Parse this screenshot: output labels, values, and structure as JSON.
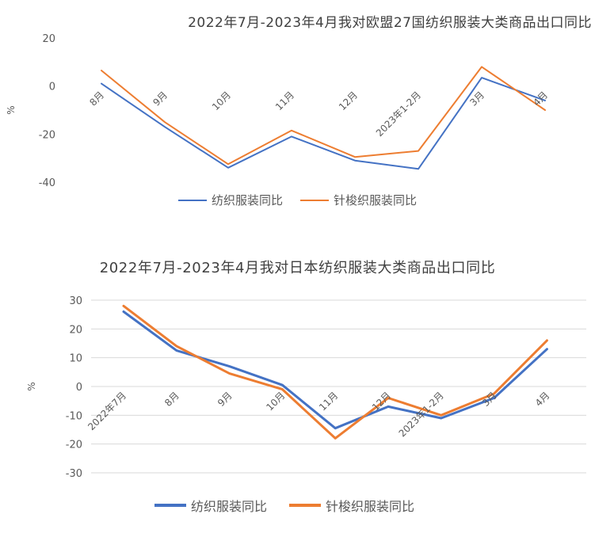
{
  "chart_data": [
    {
      "type": "line",
      "title": "2022年7月-2023年4月我对欧盟27国纺织服装大类商品出口同比",
      "ylabel": "%",
      "ylim": [
        -40,
        20
      ],
      "yticks": [
        20,
        0,
        -20,
        -40
      ],
      "categories": [
        "8月",
        "9月",
        "10月",
        "11月",
        "12月",
        "2023年1-2月",
        "3月",
        "4月"
      ],
      "series": [
        {
          "name": "纺织服装同比",
          "color": "#4472C4",
          "values": [
            1,
            -17,
            -34,
            -21,
            -31,
            -34.5,
            3.5,
            -6
          ]
        },
        {
          "name": "针梭织服装同比",
          "color": "#ED7D31",
          "values": [
            6.5,
            -15,
            -32.5,
            -18.5,
            -29.5,
            -27,
            8,
            -10
          ]
        }
      ],
      "grid": false,
      "legend": "bottom"
    },
    {
      "type": "line",
      "title": "2022年7月-2023年4月我对日本纺织服装大类商品出口同比",
      "ylabel": "%",
      "ylim": [
        -30,
        30
      ],
      "yticks": [
        30,
        20,
        10,
        0,
        -10,
        -20,
        -30
      ],
      "categories": [
        "2022年7月",
        "8月",
        "9月",
        "10月",
        "11月",
        "12月",
        "2023年1-2月",
        "3月",
        "4月"
      ],
      "series": [
        {
          "name": "纺织服装同比",
          "color": "#4472C4",
          "values": [
            26,
            12.5,
            7,
            0.5,
            -14.5,
            -7,
            -11,
            -4,
            13
          ]
        },
        {
          "name": "针梭织服装同比",
          "color": "#ED7D31",
          "values": [
            28,
            14,
            4.5,
            -1,
            -18,
            -4,
            -10,
            -2.5,
            16
          ]
        }
      ],
      "grid": true,
      "legend": "bottom"
    }
  ]
}
